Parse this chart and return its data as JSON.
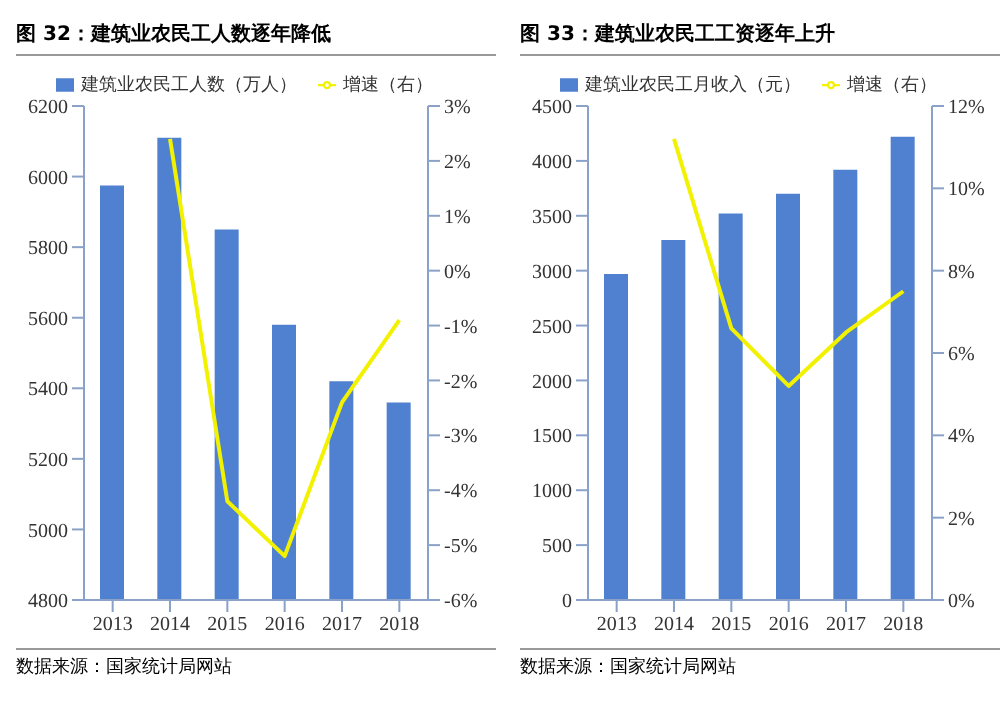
{
  "chart_data": [
    {
      "type": "bar",
      "title": "图 32：建筑业农民工人数逐年降低",
      "categories": [
        "2013",
        "2014",
        "2015",
        "2016",
        "2017",
        "2018"
      ],
      "series": [
        {
          "name": "建筑业农民工人数（万人）",
          "color": "#4f81d0",
          "values": [
            5975,
            6110,
            5850,
            5580,
            5420,
            5360
          ]
        },
        {
          "name": "增速（右）",
          "type": "line",
          "axis": "y2",
          "color": "#f2f200",
          "values": [
            null,
            2.4,
            -4.2,
            -5.2,
            -2.4,
            -0.9
          ]
        }
      ],
      "ylim": [
        4800,
        6200
      ],
      "yticks": [
        4800,
        5000,
        5200,
        5400,
        5600,
        5800,
        6000,
        6200
      ],
      "y2lim": [
        -6,
        3
      ],
      "y2ticks": [
        {
          "value": -6,
          "label": "-6%"
        },
        {
          "value": -5,
          "label": "-5%"
        },
        {
          "value": -4,
          "label": "-4%"
        },
        {
          "value": -3,
          "label": "-3%"
        },
        {
          "value": -2,
          "label": "-2%"
        },
        {
          "value": -1,
          "label": "-1%"
        },
        {
          "value": 0,
          "label": "0%"
        },
        {
          "value": 1,
          "label": "1%"
        },
        {
          "value": 2,
          "label": "2%"
        },
        {
          "value": 3,
          "label": "3%"
        }
      ],
      "legend": "top",
      "marker": "none",
      "annotations": [
        "数据来源：国家统计局网站"
      ]
    },
    {
      "type": "bar",
      "title": "图 33：建筑业农民工工资逐年上升",
      "categories": [
        "2013",
        "2014",
        "2015",
        "2016",
        "2017",
        "2018"
      ],
      "series": [
        {
          "name": "建筑业农民工月收入（元）",
          "color": "#4f81d0",
          "values": [
            2970,
            3280,
            3520,
            3700,
            3920,
            4220
          ]
        },
        {
          "name": "增速（右）",
          "type": "line",
          "axis": "y2",
          "color": "#f2f200",
          "values": [
            null,
            11.2,
            6.6,
            5.2,
            6.5,
            7.5
          ]
        }
      ],
      "ylim": [
        0,
        4500
      ],
      "yticks": [
        0,
        500,
        1000,
        1500,
        2000,
        2500,
        3000,
        3500,
        4000,
        4500
      ],
      "y2lim": [
        0,
        12
      ],
      "y2ticks": [
        {
          "value": 0,
          "label": "0%"
        },
        {
          "value": 2,
          "label": "2%"
        },
        {
          "value": 4,
          "label": "4%"
        },
        {
          "value": 6,
          "label": "6%"
        },
        {
          "value": 8,
          "label": "8%"
        },
        {
          "value": 10,
          "label": "10%"
        },
        {
          "value": 12,
          "label": "12%"
        }
      ],
      "legend": "top",
      "marker": "none",
      "annotations": [
        "数据来源：国家统计局网站"
      ]
    }
  ]
}
